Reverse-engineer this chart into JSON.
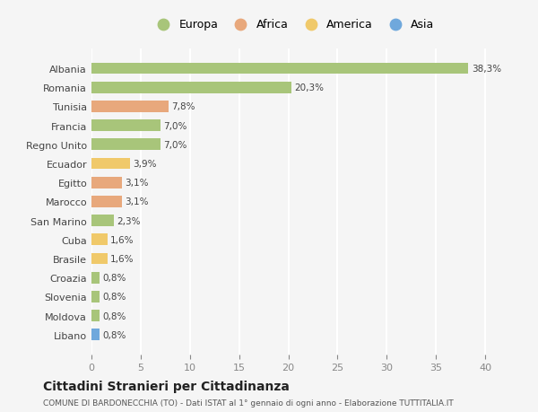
{
  "countries": [
    "Albania",
    "Romania",
    "Tunisia",
    "Francia",
    "Regno Unito",
    "Ecuador",
    "Egitto",
    "Marocco",
    "San Marino",
    "Cuba",
    "Brasile",
    "Croazia",
    "Slovenia",
    "Moldova",
    "Libano"
  ],
  "values": [
    38.3,
    20.3,
    7.8,
    7.0,
    7.0,
    3.9,
    3.1,
    3.1,
    2.3,
    1.6,
    1.6,
    0.8,
    0.8,
    0.8,
    0.8
  ],
  "labels": [
    "38,3%",
    "20,3%",
    "7,8%",
    "7,0%",
    "7,0%",
    "3,9%",
    "3,1%",
    "3,1%",
    "2,3%",
    "1,6%",
    "1,6%",
    "0,8%",
    "0,8%",
    "0,8%",
    "0,8%"
  ],
  "continents": [
    "Europa",
    "Europa",
    "Africa",
    "Europa",
    "Europa",
    "America",
    "Africa",
    "Africa",
    "Europa",
    "America",
    "America",
    "Europa",
    "Europa",
    "Europa",
    "Asia"
  ],
  "colors": {
    "Europa": "#a8c57a",
    "Africa": "#e8a87c",
    "America": "#f0c96a",
    "Asia": "#6fa8dc"
  },
  "bg_color": "#f5f5f5",
  "grid_color": "#ffffff",
  "title": "Cittadini Stranieri per Cittadinanza",
  "subtitle": "COMUNE DI BARDONECCHIA (TO) - Dati ISTAT al 1° gennaio di ogni anno - Elaborazione TUTTITALIA.IT",
  "xlim": [
    0,
    41
  ],
  "xticks": [
    0,
    5,
    10,
    15,
    20,
    25,
    30,
    35,
    40
  ],
  "legend_order": [
    "Europa",
    "Africa",
    "America",
    "Asia"
  ]
}
